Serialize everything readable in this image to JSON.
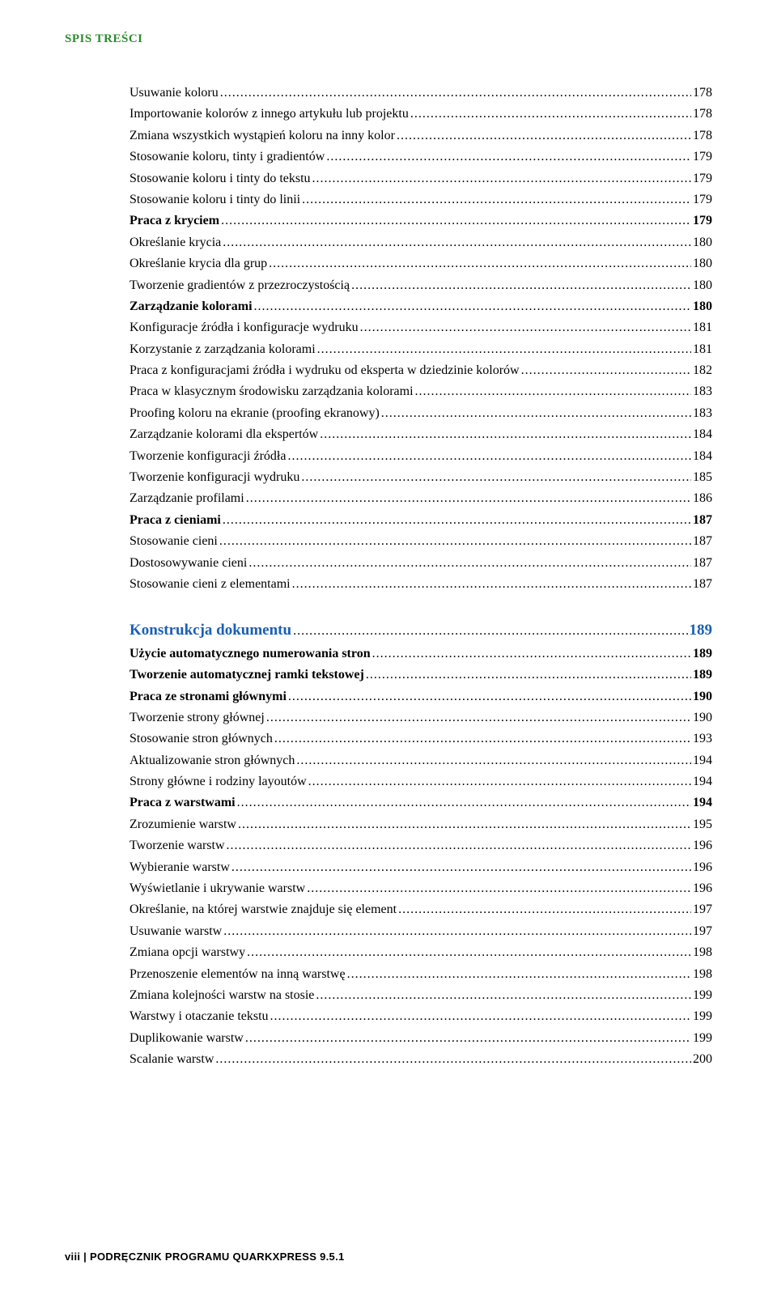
{
  "header": "SPIS TREŚCI",
  "footer_prefix": "viii",
  "footer_divider": " | ",
  "footer_title": "PODRĘCZNIK PROGRAMU QUARKXPRESS 9.5.1",
  "entries": [
    {
      "label": "Usuwanie koloru",
      "page": "178",
      "bold": false,
      "section": false
    },
    {
      "label": "Importowanie kolorów z innego artykułu lub projektu",
      "page": "178",
      "bold": false,
      "section": false
    },
    {
      "label": "Zmiana wszystkich wystąpień koloru na inny kolor",
      "page": "178",
      "bold": false,
      "section": false
    },
    {
      "label": "Stosowanie koloru, tinty i gradientów",
      "page": "179",
      "bold": false,
      "section": false
    },
    {
      "label": "Stosowanie koloru i tinty do tekstu",
      "page": "179",
      "bold": false,
      "section": false
    },
    {
      "label": "Stosowanie koloru i tinty do linii",
      "page": "179",
      "bold": false,
      "section": false
    },
    {
      "label": "Praca z kryciem",
      "page": "179",
      "bold": true,
      "section": false
    },
    {
      "label": "Określanie krycia",
      "page": "180",
      "bold": false,
      "section": false
    },
    {
      "label": "Określanie krycia dla grup",
      "page": "180",
      "bold": false,
      "section": false
    },
    {
      "label": "Tworzenie gradientów z przezroczystością",
      "page": "180",
      "bold": false,
      "section": false
    },
    {
      "label": "Zarządzanie kolorami",
      "page": "180",
      "bold": true,
      "section": false
    },
    {
      "label": "Konfiguracje źródła i konfiguracje wydruku",
      "page": "181",
      "bold": false,
      "section": false
    },
    {
      "label": "Korzystanie z zarządzania kolorami",
      "page": "181",
      "bold": false,
      "section": false
    },
    {
      "label": "Praca z konfiguracjami źródła i wydruku od eksperta w dziedzinie kolorów",
      "page": "182",
      "bold": false,
      "section": false
    },
    {
      "label": "Praca w klasycznym środowisku zarządzania kolorami",
      "page": "183",
      "bold": false,
      "section": false
    },
    {
      "label": "Proofing koloru na ekranie (proofing ekranowy)",
      "page": "183",
      "bold": false,
      "section": false
    },
    {
      "label": "Zarządzanie kolorami dla ekspertów",
      "page": "184",
      "bold": false,
      "section": false
    },
    {
      "label": "Tworzenie konfiguracji źródła",
      "page": "184",
      "bold": false,
      "section": false
    },
    {
      "label": "Tworzenie konfiguracji wydruku",
      "page": "185",
      "bold": false,
      "section": false
    },
    {
      "label": "Zarządzanie profilami",
      "page": "186",
      "bold": false,
      "section": false
    },
    {
      "label": "Praca z cieniami",
      "page": "187",
      "bold": true,
      "section": false
    },
    {
      "label": "Stosowanie cieni",
      "page": "187",
      "bold": false,
      "section": false
    },
    {
      "label": "Dostosowywanie cieni",
      "page": "187",
      "bold": false,
      "section": false
    },
    {
      "label": "Stosowanie cieni z elementami",
      "page": "187",
      "bold": false,
      "section": false
    },
    {
      "label": "Konstrukcja dokumentu",
      "page": "189",
      "bold": true,
      "section": true
    },
    {
      "label": "Użycie automatycznego numerowania stron",
      "page": "189",
      "bold": true,
      "section": false
    },
    {
      "label": "Tworzenie automatycznej ramki tekstowej",
      "page": "189",
      "bold": true,
      "section": false
    },
    {
      "label": "Praca ze stronami głównymi",
      "page": "190",
      "bold": true,
      "section": false
    },
    {
      "label": "Tworzenie strony głównej",
      "page": "190",
      "bold": false,
      "section": false
    },
    {
      "label": "Stosowanie stron głównych",
      "page": "193",
      "bold": false,
      "section": false
    },
    {
      "label": "Aktualizowanie stron głównych",
      "page": "194",
      "bold": false,
      "section": false
    },
    {
      "label": "Strony główne i rodziny layoutów",
      "page": "194",
      "bold": false,
      "section": false
    },
    {
      "label": "Praca z warstwami",
      "page": "194",
      "bold": true,
      "section": false
    },
    {
      "label": "Zrozumienie warstw",
      "page": "195",
      "bold": false,
      "section": false
    },
    {
      "label": "Tworzenie warstw",
      "page": "196",
      "bold": false,
      "section": false
    },
    {
      "label": "Wybieranie warstw",
      "page": "196",
      "bold": false,
      "section": false
    },
    {
      "label": "Wyświetlanie i ukrywanie warstw",
      "page": "196",
      "bold": false,
      "section": false
    },
    {
      "label": "Określanie, na której warstwie znajduje się element",
      "page": "197",
      "bold": false,
      "section": false
    },
    {
      "label": "Usuwanie warstw",
      "page": "197",
      "bold": false,
      "section": false
    },
    {
      "label": "Zmiana opcji warstwy",
      "page": "198",
      "bold": false,
      "section": false
    },
    {
      "label": "Przenoszenie elementów na inną warstwę",
      "page": "198",
      "bold": false,
      "section": false
    },
    {
      "label": "Zmiana kolejności warstw na stosie",
      "page": "199",
      "bold": false,
      "section": false
    },
    {
      "label": "Warstwy i otaczanie tekstu",
      "page": "199",
      "bold": false,
      "section": false
    },
    {
      "label": "Duplikowanie warstw",
      "page": "199",
      "bold": false,
      "section": false
    },
    {
      "label": "Scalanie warstw",
      "page": "200",
      "bold": false,
      "section": false
    }
  ]
}
